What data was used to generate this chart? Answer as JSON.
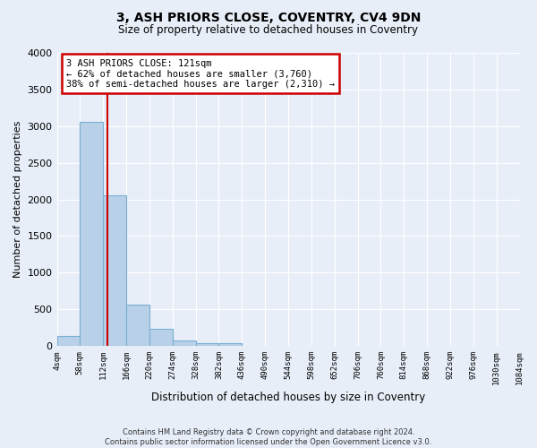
{
  "title": "3, ASH PRIORS CLOSE, COVENTRY, CV4 9DN",
  "subtitle": "Size of property relative to detached houses in Coventry",
  "xlabel": "Distribution of detached houses by size in Coventry",
  "ylabel": "Number of detached properties",
  "footer_line1": "Contains HM Land Registry data © Crown copyright and database right 2024.",
  "footer_line2": "Contains public sector information licensed under the Open Government Licence v3.0.",
  "bar_color": "#b8d0e8",
  "bar_edge_color": "#7aafd4",
  "background_color": "#e8eef8",
  "grid_color": "#ffffff",
  "annotation_line1": "3 ASH PRIORS CLOSE: 121sqm",
  "annotation_line2": "← 62% of detached houses are smaller (3,760)",
  "annotation_line3": "38% of semi-detached houses are larger (2,310) →",
  "annotation_box_color": "#ffffff",
  "annotation_box_edge": "#cc0000",
  "vline_x": 121,
  "vline_color": "#cc0000",
  "bin_edges": [
    4,
    58,
    112,
    166,
    220,
    274,
    328,
    382,
    436,
    490,
    544,
    598,
    652,
    706,
    760,
    814,
    868,
    922,
    976,
    1030,
    1084
  ],
  "bin_counts": [
    140,
    3060,
    2060,
    560,
    240,
    75,
    40,
    35,
    0,
    0,
    0,
    0,
    0,
    0,
    0,
    0,
    0,
    0,
    0,
    0
  ],
  "ylim": [
    0,
    4000
  ],
  "yticks": [
    0,
    500,
    1000,
    1500,
    2000,
    2500,
    3000,
    3500,
    4000
  ],
  "figsize": [
    6.0,
    5.0
  ],
  "dpi": 100
}
